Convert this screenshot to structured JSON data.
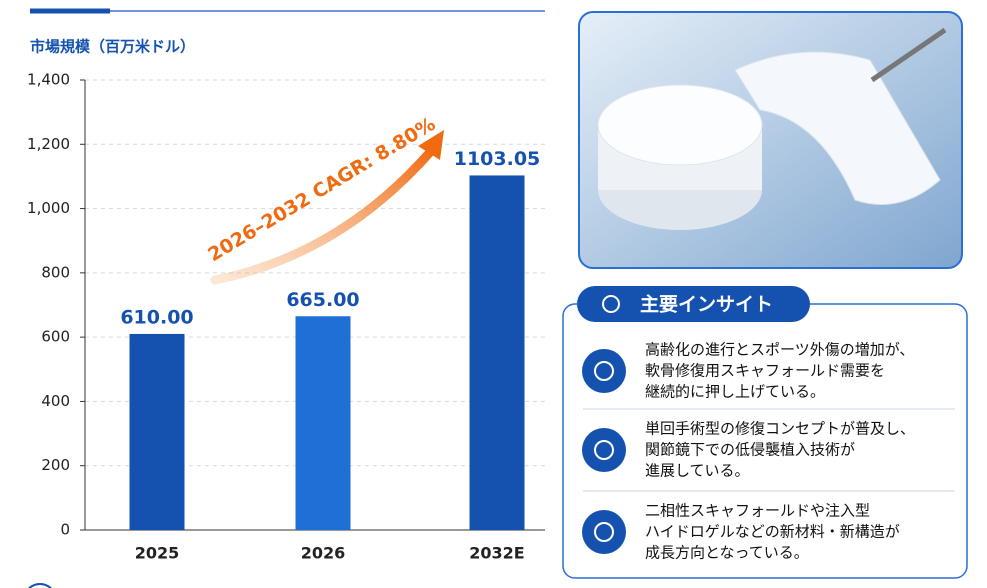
{
  "chart_data": {
    "type": "bar",
    "ylabel": "市場規模（百万米ドル）",
    "categories": [
      "2025",
      "2026",
      "2032E"
    ],
    "values": [
      610,
      665,
      1103.05
    ],
    "value_labels": [
      "610.00",
      "665.00",
      "1103.05"
    ],
    "colors": [
      "#1552b0",
      "#1f6fd6",
      "#1552b0"
    ],
    "ylim": [
      0,
      1400
    ],
    "yticks": [
      0,
      200,
      400,
      600,
      800,
      {
        "value": 1000,
        "label": "1,000"
      },
      {
        "value": 1200,
        "label": "1,200"
      },
      {
        "value": 1400,
        "label": "1,400"
      }
    ],
    "grid": true,
    "annotation": "2026–2032 CAGR: 8.80%"
  },
  "insights": {
    "title": "主要インサイト",
    "items": [
      {
        "lines": [
          "高齢化の進行とスポーツ外傷の増加が、",
          "軟骨修復用スキャフォールド需要を",
          "継続的に押し上げている。"
        ]
      },
      {
        "lines": [
          "単回手術型の修復コンセプトが普及し、",
          "関節鏡下での低侵襲植入技術が",
          "進展している。"
        ]
      },
      {
        "lines": [
          "二相性スキャフォールドや注入型",
          "ハイドロゲルなどの新材料・新構造が",
          "成長方向となっている。"
        ]
      }
    ]
  }
}
